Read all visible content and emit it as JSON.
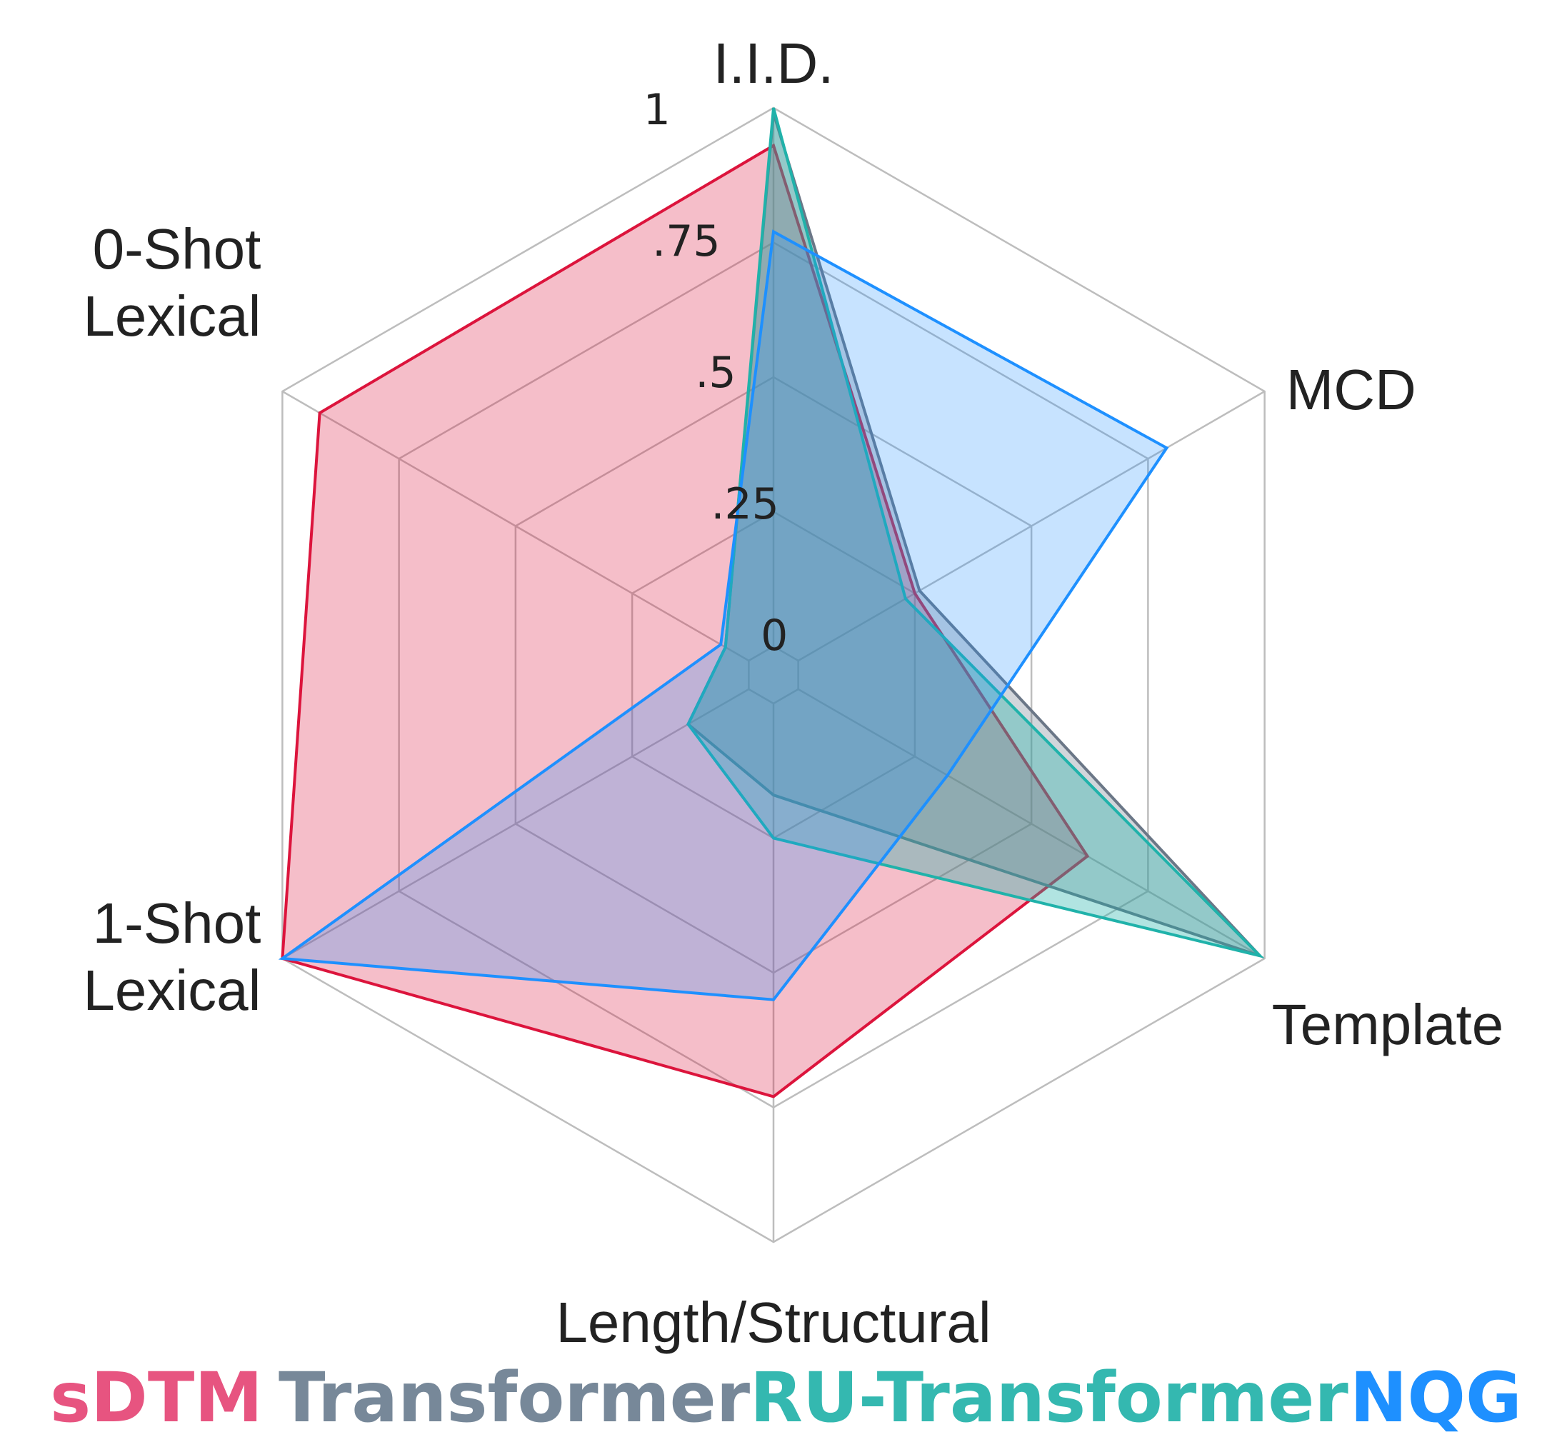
{
  "chart_data": {
    "type": "radar",
    "axes": [
      "I.I.D.",
      "MCD",
      "Template",
      "Length/Structural",
      "1-Shot Lexical",
      "0-Shot Lexical"
    ],
    "axis_label_lines": [
      [
        "I.I.D."
      ],
      [
        "MCD"
      ],
      [
        "Template"
      ],
      [
        "Length/Structural"
      ],
      [
        "1-Shot",
        "Lexical"
      ],
      [
        "0-Shot",
        "Lexical"
      ]
    ],
    "rlim": [
      0,
      1
    ],
    "ticks": [
      0,
      0.25,
      0.5,
      0.75,
      1
    ],
    "tick_labels": [
      "0",
      ".25",
      ".5",
      ".75",
      "1"
    ],
    "grid": true,
    "legend_position": "bottom",
    "series": [
      {
        "name": "sDTM",
        "color": "#dc143c",
        "fill": "#dc143c",
        "fill_opacity": 0.28,
        "legend_color": "#e75480",
        "values": [
          0.93,
          0.25,
          0.62,
          0.73,
          1.0,
          0.92
        ]
      },
      {
        "name": "Transformer",
        "color": "#6b7787",
        "fill": "#6b7787",
        "fill_opacity": 0.3,
        "legend_color": "#778899",
        "values": [
          0.99,
          0.26,
          0.99,
          0.17,
          0.13,
          0.05
        ]
      },
      {
        "name": "RU-Transformer",
        "color": "#20b2aa",
        "fill": "#20b2aa",
        "fill_opacity": 0.35,
        "legend_color": "#34b8b0",
        "values": [
          1.0,
          0.23,
          0.99,
          0.25,
          0.13,
          0.05
        ]
      },
      {
        "name": "NQG",
        "color": "#1e90ff",
        "fill": "#1e90ff",
        "fill_opacity": 0.25,
        "legend_color": "#1e90ff",
        "values": [
          0.77,
          0.79,
          0.32,
          0.55,
          1.0,
          0.06
        ]
      }
    ]
  }
}
